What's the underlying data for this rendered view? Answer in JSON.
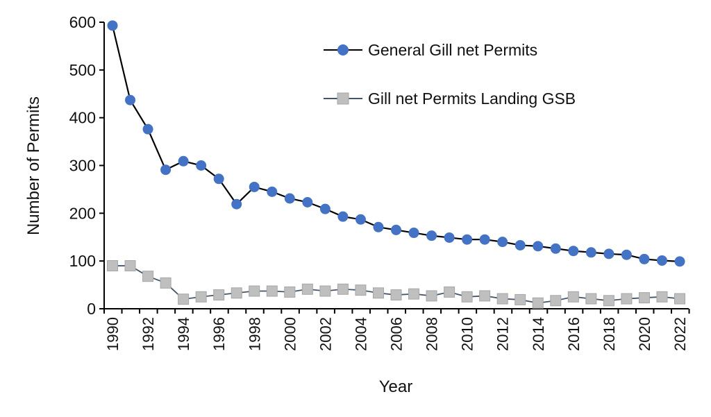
{
  "chart_data": {
    "type": "line",
    "title": "",
    "xlabel": "Year",
    "ylabel": "Number of Permits",
    "ylim": [
      0,
      600
    ],
    "yticks": [
      0,
      100,
      200,
      300,
      400,
      500,
      600
    ],
    "xlim": [
      1990,
      2022
    ],
    "xtick_labels": [
      "1990",
      "1992",
      "1994",
      "1996",
      "1998",
      "2000",
      "2002",
      "2004",
      "2006",
      "2008",
      "2010",
      "2012",
      "2014",
      "2016",
      "2018",
      "2020",
      "2022"
    ],
    "grid": false,
    "legend_position": "top-right",
    "x": [
      1990,
      1991,
      1992,
      1993,
      1994,
      1995,
      1996,
      1997,
      1998,
      1999,
      2000,
      2001,
      2002,
      2003,
      2004,
      2005,
      2006,
      2007,
      2008,
      2009,
      2010,
      2011,
      2012,
      2013,
      2014,
      2015,
      2016,
      2017,
      2018,
      2019,
      2020,
      2021,
      2022
    ],
    "series": [
      {
        "name": "General Gill net Permits",
        "marker": "circle",
        "color": "#4472C4",
        "line_color": "#000000",
        "values": [
          593,
          437,
          376,
          291,
          309,
          300,
          272,
          219,
          255,
          245,
          231,
          223,
          209,
          193,
          187,
          171,
          165,
          159,
          153,
          149,
          145,
          145,
          140,
          133,
          131,
          126,
          121,
          118,
          115,
          113,
          104,
          101,
          99
        ]
      },
      {
        "name": "Gill net Permits Landing GSB",
        "marker": "square",
        "color": "#BFBFBF",
        "line_color": "#44546A",
        "values": [
          90,
          90,
          68,
          54,
          20,
          25,
          29,
          33,
          37,
          37,
          35,
          41,
          37,
          41,
          39,
          33,
          29,
          31,
          27,
          35,
          25,
          27,
          21,
          19,
          12,
          17,
          25,
          21,
          17,
          21,
          23,
          25,
          21
        ]
      }
    ]
  }
}
